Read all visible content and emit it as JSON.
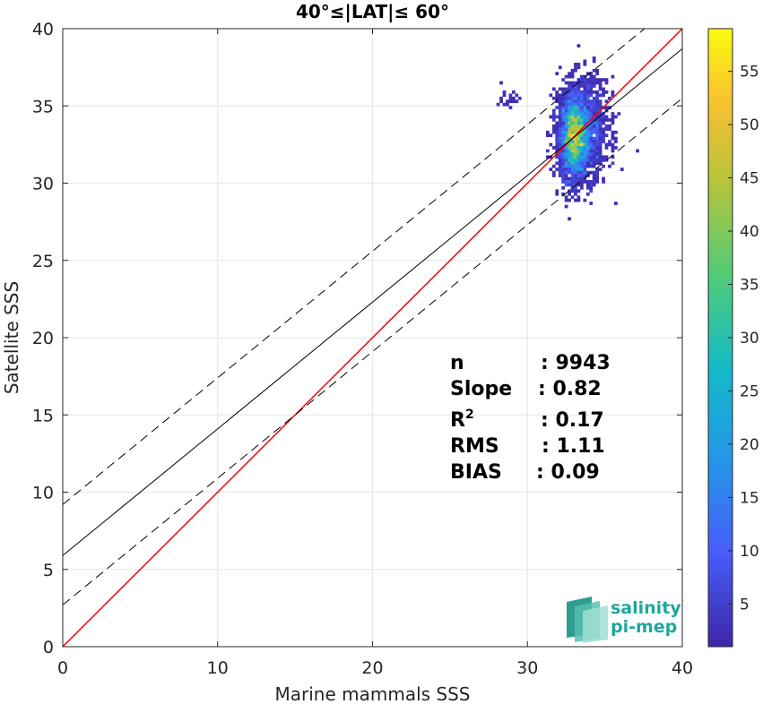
{
  "chart_data": {
    "type": "scatter",
    "title": "40°≤|LAT|≤ 60°",
    "xlabel": "Marine mammals SSS",
    "ylabel": "Satellite SSS",
    "xlim": [
      0,
      40
    ],
    "ylim": [
      0,
      40
    ],
    "xticks": [
      "0",
      "10",
      "20",
      "30",
      "40"
    ],
    "yticks": [
      "0",
      "5",
      "10",
      "15",
      "20",
      "25",
      "30",
      "35",
      "40"
    ],
    "grid": true,
    "density_clusters": [
      {
        "cx": 33.0,
        "cy": 32.9,
        "sx": 0.45,
        "sy": 1.3,
        "n": 2600,
        "peak": 58
      },
      {
        "cx": 33.6,
        "cy": 33.6,
        "sx": 0.8,
        "sy": 1.6,
        "n": 1400,
        "peak": 30
      },
      {
        "cx": 28.8,
        "cy": 35.5,
        "sx": 0.35,
        "sy": 0.35,
        "n": 22,
        "peak": 2
      }
    ],
    "lines": [
      {
        "name": "",
        "kind": "identity",
        "slope": 1.0,
        "intercept": 0.0,
        "color": "#ff0000",
        "style": "solid"
      },
      {
        "name": "",
        "kind": "fit",
        "slope": 0.82,
        "intercept": 5.9,
        "color": "#000000",
        "style": "solid"
      },
      {
        "name": "",
        "kind": "fit+bound",
        "slope": 0.82,
        "intercept": 9.2,
        "color": "#000000",
        "style": "dashed"
      },
      {
        "name": "",
        "kind": "fit-bound",
        "slope": 0.82,
        "intercept": 2.7,
        "color": "#000000",
        "style": "dashed"
      }
    ],
    "colorbar": {
      "min": 1,
      "max": 59,
      "ticks": [
        5,
        10,
        15,
        20,
        25,
        30,
        35,
        40,
        45,
        50,
        55
      ],
      "colormap": "parula"
    },
    "stats": [
      {
        "label": "n",
        "value": ": 9943"
      },
      {
        "label": "Slope",
        "value": ": 0.82"
      },
      {
        "label": "R",
        "sup": "2",
        "value": ": 0.17"
      },
      {
        "label": "RMS",
        "value": ": 1.11"
      },
      {
        "label": "BIAS",
        "value": ": 0.09"
      }
    ]
  },
  "logo": {
    "line1": "salinity",
    "line2": "pi-mep"
  }
}
